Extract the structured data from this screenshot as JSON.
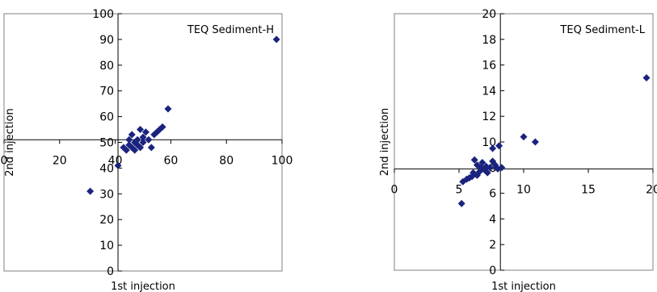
{
  "chart_data": [
    {
      "type": "scatter",
      "title": "TEQ Sediment-H",
      "xlabel": "1st injection",
      "ylabel": "2nd injection",
      "xlim": [
        0,
        100
      ],
      "ylim": [
        0,
        100
      ],
      "xticks": [
        "0",
        "20",
        "40",
        "60",
        "80",
        "100"
      ],
      "yticks": [
        "0",
        "10",
        "20",
        "30",
        "40",
        "50",
        "60",
        "70",
        "80",
        "90",
        "100"
      ],
      "axis_cross": [
        41,
        51
      ],
      "marker_color": "#1a237e",
      "grid": false,
      "points": [
        {
          "x": 31,
          "y": 31
        },
        {
          "x": 41,
          "y": 41
        },
        {
          "x": 43,
          "y": 48
        },
        {
          "x": 44,
          "y": 47
        },
        {
          "x": 45,
          "y": 49
        },
        {
          "x": 45,
          "y": 51
        },
        {
          "x": 46,
          "y": 48
        },
        {
          "x": 46,
          "y": 53
        },
        {
          "x": 47,
          "y": 47
        },
        {
          "x": 47,
          "y": 50
        },
        {
          "x": 48,
          "y": 49
        },
        {
          "x": 48,
          "y": 51
        },
        {
          "x": 49,
          "y": 55
        },
        {
          "x": 49,
          "y": 48
        },
        {
          "x": 50,
          "y": 50
        },
        {
          "x": 50,
          "y": 52
        },
        {
          "x": 51,
          "y": 54
        },
        {
          "x": 52,
          "y": 51
        },
        {
          "x": 53,
          "y": 48
        },
        {
          "x": 54,
          "y": 53
        },
        {
          "x": 55,
          "y": 54
        },
        {
          "x": 56,
          "y": 55
        },
        {
          "x": 57,
          "y": 56
        },
        {
          "x": 59,
          "y": 63
        },
        {
          "x": 98,
          "y": 90
        }
      ]
    },
    {
      "type": "scatter",
      "title": "TEQ Sediment-L",
      "xlabel": "1st injection",
      "ylabel": "2nd injection",
      "xlim": [
        0,
        20
      ],
      "ylim": [
        0,
        20
      ],
      "xticks": [
        "0",
        "5",
        "10",
        "15",
        "20"
      ],
      "yticks": [
        "0",
        "2",
        "4",
        "6",
        "8",
        "10",
        "12",
        "14",
        "16",
        "18",
        "20"
      ],
      "axis_cross": [
        8.2,
        7.9
      ],
      "marker_color": "#1a237e",
      "grid": false,
      "points": [
        {
          "x": 5.2,
          "y": 5.2
        },
        {
          "x": 5.3,
          "y": 6.9
        },
        {
          "x": 5.6,
          "y": 7.1
        },
        {
          "x": 5.8,
          "y": 7.2
        },
        {
          "x": 6.0,
          "y": 7.3
        },
        {
          "x": 6.1,
          "y": 7.6
        },
        {
          "x": 6.2,
          "y": 8.6
        },
        {
          "x": 6.4,
          "y": 7.4
        },
        {
          "x": 6.4,
          "y": 8.2
        },
        {
          "x": 6.6,
          "y": 7.7
        },
        {
          "x": 6.7,
          "y": 8.0
        },
        {
          "x": 6.8,
          "y": 8.4
        },
        {
          "x": 7.0,
          "y": 7.8
        },
        {
          "x": 7.1,
          "y": 8.1
        },
        {
          "x": 7.2,
          "y": 7.6
        },
        {
          "x": 7.4,
          "y": 8.0
        },
        {
          "x": 7.6,
          "y": 8.5
        },
        {
          "x": 7.6,
          "y": 9.5
        },
        {
          "x": 7.8,
          "y": 8.2
        },
        {
          "x": 8.0,
          "y": 7.9
        },
        {
          "x": 8.1,
          "y": 9.7
        },
        {
          "x": 8.3,
          "y": 8.0
        },
        {
          "x": 10.0,
          "y": 10.4
        },
        {
          "x": 10.9,
          "y": 10.0
        },
        {
          "x": 19.5,
          "y": 15.0
        }
      ]
    }
  ]
}
